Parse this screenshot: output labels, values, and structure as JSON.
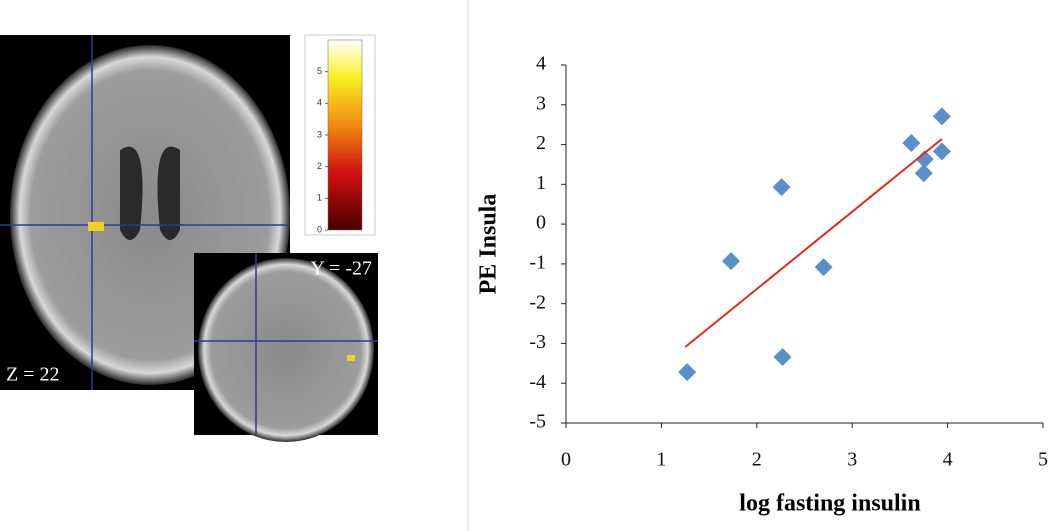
{
  "brain_panel": {
    "axial_label": "Z = 22",
    "coronal_label": "Y = -27",
    "colorbar": {
      "lim": [
        0,
        6
      ],
      "ticks": [
        0,
        1,
        2,
        3,
        4,
        5
      ]
    }
  },
  "chart_data": {
    "type": "scatter",
    "ylabel": "PE Insula",
    "xlabel": "log fasting insulin",
    "series": [
      {
        "color": "#5b8fc9",
        "x": [
          1.27,
          1.73,
          2.26,
          2.27,
          2.7,
          3.62,
          3.76,
          3.75,
          3.94,
          3.94
        ],
        "values": [
          -3.72,
          -0.93,
          0.93,
          -3.34,
          -1.08,
          2.04,
          1.63,
          1.28,
          2.71,
          1.83
        ]
      }
    ],
    "trendline": {
      "x": [
        1.25,
        3.94
      ],
      "y": [
        -3.09,
        2.14
      ],
      "color": "#e8281e"
    },
    "xlim": [
      0,
      5
    ],
    "xticks": [
      0,
      1,
      2,
      3,
      4,
      5
    ],
    "ylim": [
      -5,
      4
    ],
    "yticks": [
      -5,
      -4,
      -3,
      -2,
      -1,
      0,
      1,
      2,
      3,
      4
    ]
  }
}
